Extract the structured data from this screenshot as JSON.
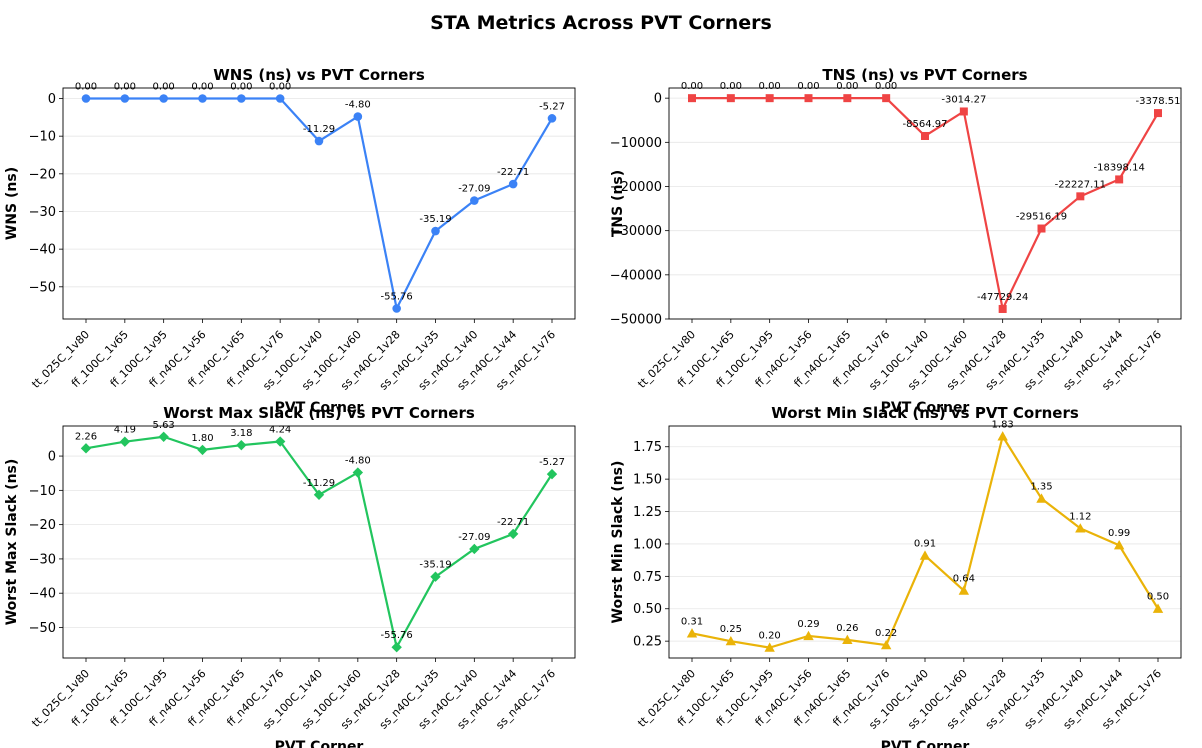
{
  "figure": {
    "title": "STA Metrics Across PVT Corners"
  },
  "chart_data": [
    {
      "type": "line",
      "title": "WNS (ns) vs PVT Corners",
      "xlabel": "PVT Corner",
      "ylabel": "WNS (ns)",
      "categories": [
        "tt_025C_1v80",
        "ff_100C_1v65",
        "ff_100C_1v95",
        "ff_n40C_1v56",
        "ff_n40C_1v65",
        "ff_n40C_1v76",
        "ss_100C_1v40",
        "ss_100C_1v60",
        "ss_n40C_1v28",
        "ss_n40C_1v35",
        "ss_n40C_1v40",
        "ss_n40C_1v44",
        "ss_n40C_1v76"
      ],
      "values": [
        0.0,
        0.0,
        0.0,
        0.0,
        0.0,
        0.0,
        -11.29,
        -4.8,
        -55.76,
        -35.19,
        -27.09,
        -22.71,
        -5.27
      ],
      "data_labels": [
        "0.00",
        "0.00",
        "0.00",
        "0.00",
        "0.00",
        "0.00",
        "-11.29",
        "-4.80",
        "-55.76",
        "-35.19",
        "-27.09",
        "-22.71",
        "-5.27"
      ],
      "ylim": [
        -58.55,
        2.79
      ],
      "yticks": [
        0,
        -10,
        -20,
        -30,
        -40,
        -50
      ],
      "ytick_labels": [
        "0",
        "−10",
        "−20",
        "−30",
        "−40",
        "−50"
      ],
      "color": "#3b82f6",
      "marker": "circle",
      "grid": "y"
    },
    {
      "type": "line",
      "title": "TNS (ns) vs PVT Corners",
      "xlabel": "PVT Corner",
      "ylabel": "TNS (ns)",
      "categories": [
        "tt_025C_1v80",
        "ff_100C_1v65",
        "ff_100C_1v95",
        "ff_n40C_1v56",
        "ff_n40C_1v65",
        "ff_n40C_1v76",
        "ss_100C_1v40",
        "ss_100C_1v60",
        "ss_n40C_1v28",
        "ss_n40C_1v35",
        "ss_n40C_1v40",
        "ss_n40C_1v44",
        "ss_n40C_1v76"
      ],
      "values": [
        0.0,
        0.0,
        0.0,
        0.0,
        0.0,
        0.0,
        -8564.97,
        -3014.27,
        -47729.24,
        -29516.19,
        -22227.11,
        -18398.14,
        -3378.51
      ],
      "data_labels": [
        "0.00",
        "0.00",
        "0.00",
        "0.00",
        "0.00",
        "0.00",
        "-8564.97",
        "-3014.27",
        "-47729.24",
        "-29516.19",
        "-22227.11",
        "-18398.14",
        "-3378.51"
      ],
      "ylim": [
        -50000,
        2300
      ],
      "yticks": [
        0,
        -10000,
        -20000,
        -30000,
        -40000,
        -50000
      ],
      "ytick_labels": [
        "0",
        "−10000",
        "−20000",
        "−30000",
        "−40000",
        "−50000"
      ],
      "color": "#ef4444",
      "marker": "square",
      "grid": "y"
    },
    {
      "type": "line",
      "title": "Worst Max Slack (ns) vs PVT Corners",
      "xlabel": "PVT Corner",
      "ylabel": "Worst Max Slack (ns)",
      "categories": [
        "tt_025C_1v80",
        "ff_100C_1v65",
        "ff_100C_1v95",
        "ff_n40C_1v56",
        "ff_n40C_1v65",
        "ff_n40C_1v76",
        "ss_100C_1v40",
        "ss_100C_1v60",
        "ss_n40C_1v28",
        "ss_n40C_1v35",
        "ss_n40C_1v40",
        "ss_n40C_1v44",
        "ss_n40C_1v76"
      ],
      "values": [
        2.26,
        4.19,
        5.63,
        1.8,
        3.18,
        4.24,
        -11.29,
        -4.8,
        -55.76,
        -35.19,
        -27.09,
        -22.71,
        -5.27
      ],
      "data_labels": [
        "2.26",
        "4.19",
        "5.63",
        "1.80",
        "3.18",
        "4.24",
        "-11.29",
        "-4.80",
        "-55.76",
        "-35.19",
        "-27.09",
        "-22.71",
        "-5.27"
      ],
      "ylim": [
        -58.9,
        8.77
      ],
      "yticks": [
        0,
        -10,
        -20,
        -30,
        -40,
        -50
      ],
      "ytick_labels": [
        "0",
        "−10",
        "−20",
        "−30",
        "−40",
        "−50"
      ],
      "color": "#22c55e",
      "marker": "diamond",
      "grid": "y"
    },
    {
      "type": "line",
      "title": "Worst Min Slack (ns) vs PVT Corners",
      "xlabel": "PVT Corner",
      "ylabel": "Worst Min Slack (ns)",
      "categories": [
        "tt_025C_1v80",
        "ff_100C_1v65",
        "ff_100C_1v95",
        "ff_n40C_1v56",
        "ff_n40C_1v65",
        "ff_n40C_1v76",
        "ss_100C_1v40",
        "ss_100C_1v60",
        "ss_n40C_1v28",
        "ss_n40C_1v35",
        "ss_n40C_1v40",
        "ss_n40C_1v44",
        "ss_n40C_1v76"
      ],
      "values": [
        0.31,
        0.25,
        0.2,
        0.29,
        0.26,
        0.22,
        0.91,
        0.64,
        1.83,
        1.35,
        1.12,
        0.99,
        0.5
      ],
      "data_labels": [
        "0.31",
        "0.25",
        "0.20",
        "0.29",
        "0.26",
        "0.22",
        "0.91",
        "0.64",
        "1.83",
        "1.35",
        "1.12",
        "0.99",
        "0.50"
      ],
      "ylim": [
        0.12,
        1.91
      ],
      "yticks": [
        0.25,
        0.5,
        0.75,
        1.0,
        1.25,
        1.5,
        1.75
      ],
      "ytick_labels": [
        "0.25",
        "0.50",
        "0.75",
        "1.00",
        "1.25",
        "1.50",
        "1.75"
      ],
      "color": "#eab308",
      "marker": "triangle",
      "grid": "y"
    }
  ]
}
